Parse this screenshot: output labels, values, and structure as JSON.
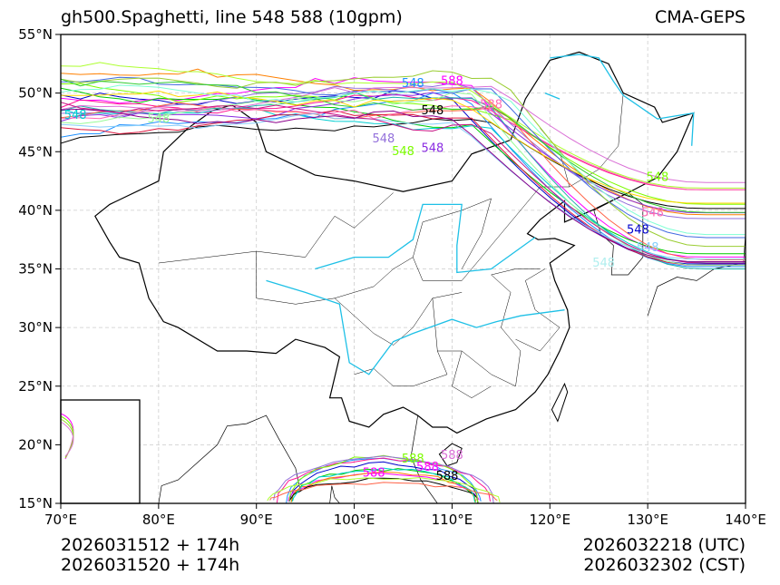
{
  "header": {
    "title": "gh500.Spaghetti, line 548 588 (10gpm)",
    "model": "CMA-GEPS"
  },
  "footer": {
    "init_utc": "2026031512 + 174h",
    "init_cst": "2026031520 + 174h",
    "valid_utc": "2026032218 (UTC)",
    "valid_cst": "2026032302 (CST)"
  },
  "map": {
    "lon_range": [
      70,
      140
    ],
    "lat_range": [
      15,
      55
    ],
    "lat_ticks": [
      "15°N",
      "20°N",
      "25°N",
      "30°N",
      "35°N",
      "40°N",
      "45°N",
      "50°N",
      "55°N"
    ],
    "lon_ticks": [
      "70°E",
      "80°E",
      "90°E",
      "100°E",
      "110°E",
      "120°E",
      "130°E",
      "140°E"
    ],
    "contour_levels": [
      "548",
      "588"
    ],
    "member_colors": [
      "#0000cc",
      "#ff00ff",
      "#00cc00",
      "#ff8000",
      "#000000",
      "#1e90ff",
      "#ff1493",
      "#7cfc00",
      "#9370db",
      "#00ced1",
      "#ff6347",
      "#adff2f",
      "#8a2be2",
      "#20b2aa",
      "#dc143c",
      "#98fb98",
      "#ff69b4",
      "#4169e1",
      "#9acd32",
      "#da70d6",
      "#87cefa",
      "#c71585",
      "#32cd32",
      "#ffd700",
      "#7fffd4",
      "#8b008b"
    ],
    "river_color": "#1ec0e6"
  }
}
